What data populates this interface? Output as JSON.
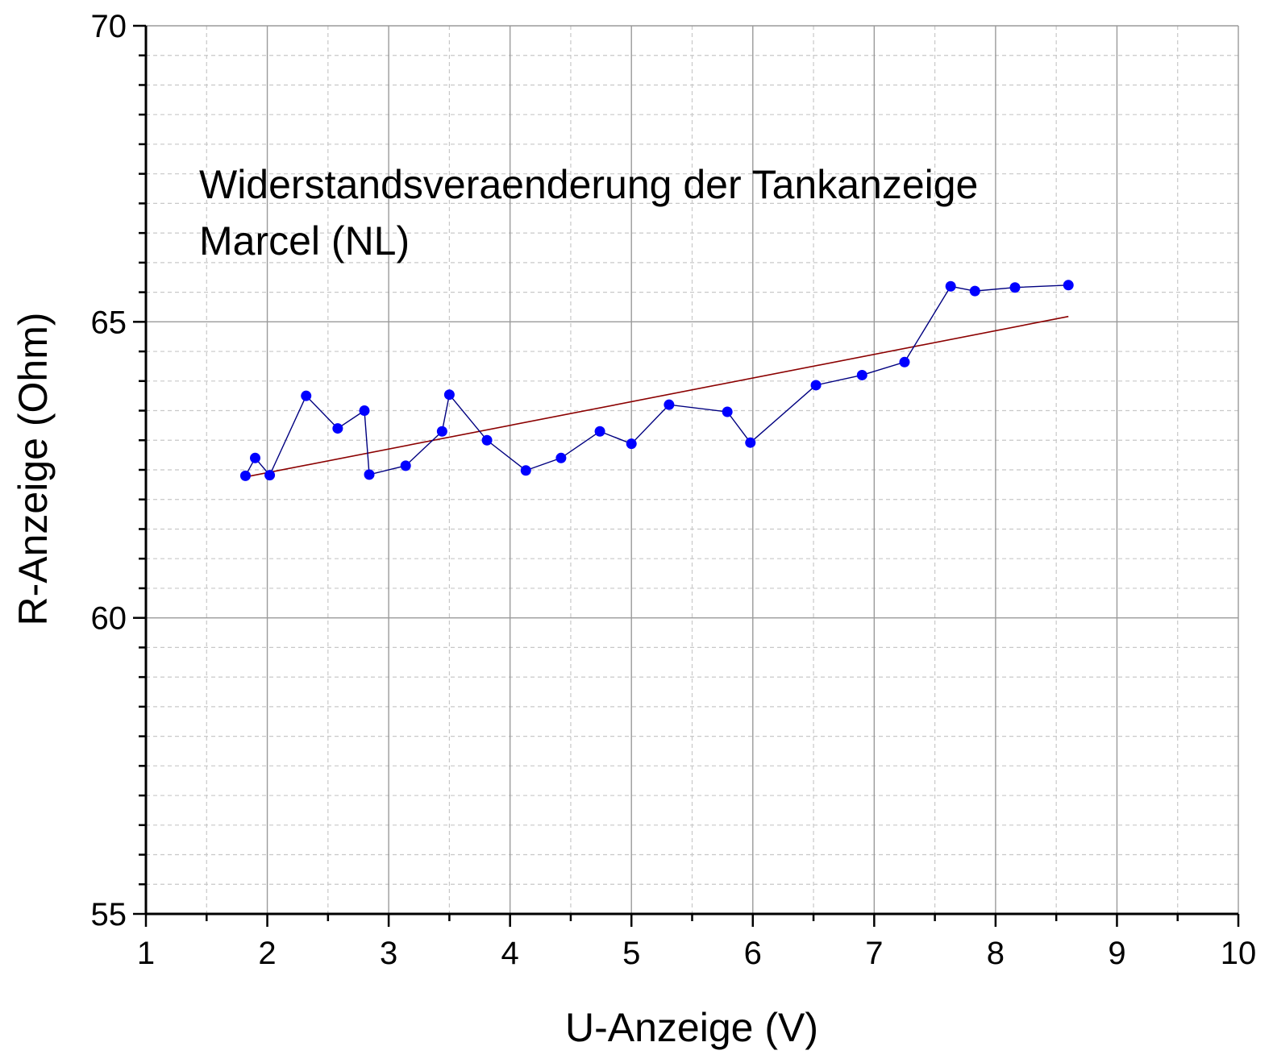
{
  "chart_data": {
    "type": "scatter",
    "title": "",
    "xlabel": "U-Anzeige (V)",
    "ylabel": "R-Anzeige (Ohm)",
    "xlim": [
      1,
      10
    ],
    "ylim": [
      55,
      70
    ],
    "x_ticks": [
      1,
      2,
      3,
      4,
      5,
      6,
      7,
      8,
      9,
      10
    ],
    "y_ticks": [
      55,
      60,
      65,
      70
    ],
    "x_tick_labels": [
      "1",
      "2",
      "3",
      "4",
      "5",
      "6",
      "7",
      "8",
      "9",
      "10"
    ],
    "y_tick_labels": [
      "55",
      "60",
      "65",
      "70"
    ],
    "grid": true,
    "annotation": [
      "Widerstandsveraenderung der Tankanzeige",
      "Marcel (NL)"
    ],
    "series": [
      {
        "color": "#0000ff",
        "line_color": "#000080",
        "x": [
          1.82,
          1.9,
          2.02,
          2.32,
          2.58,
          2.8,
          2.84,
          3.14,
          3.44,
          3.5,
          3.81,
          4.13,
          4.42,
          4.74,
          5.0,
          5.31,
          5.79,
          5.98,
          6.52,
          6.9,
          7.25,
          7.63,
          7.83,
          8.16,
          8.6
        ],
        "y": [
          62.4,
          62.7,
          62.41,
          63.75,
          63.2,
          63.5,
          62.42,
          62.57,
          63.15,
          63.77,
          63.0,
          62.49,
          62.7,
          63.15,
          62.94,
          63.6,
          63.48,
          62.96,
          63.93,
          64.1,
          64.32,
          65.6,
          65.52,
          65.58,
          65.62
        ]
      },
      {
        "color": "#8b0000",
        "x": [
          1.82,
          8.6
        ],
        "y": [
          62.38,
          65.09
        ]
      }
    ]
  }
}
